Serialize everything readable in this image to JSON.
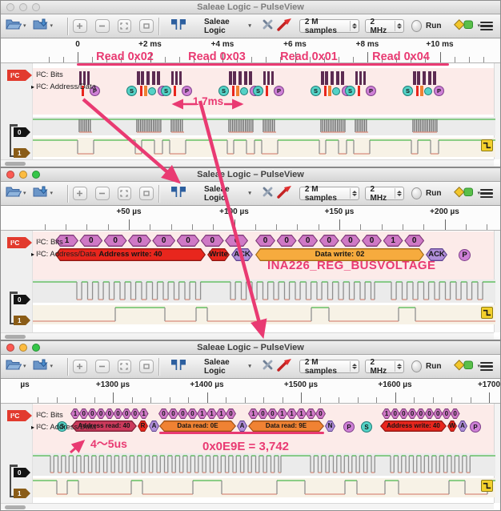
{
  "title": "Saleae Logic – PulseView",
  "toolbar": {
    "device": "Saleae Logic",
    "samples": "2 M samples",
    "rate": "2 MHz",
    "run": "Run"
  },
  "decoder": {
    "tag": "I²C",
    "bits_label": "I²C: Bits",
    "addr_label": "I²C: Address/Data",
    "ch0": "0",
    "ch1": "1"
  },
  "w1": {
    "ruler": [
      "0",
      "+2 ms",
      "+4 ms",
      "+6 ms",
      "+8 ms",
      "+10 ms"
    ],
    "reads": [
      "Read 0x02",
      "Read 0x03",
      "Read 0x01",
      "Read 0x04"
    ],
    "interval": "1.7ms"
  },
  "w2": {
    "ruler": [
      "+50 µs",
      "+100 µs",
      "+150 µs",
      "+200 µs"
    ],
    "bits": [
      [
        "1",
        "0",
        "0",
        "0",
        "0",
        "0",
        "0",
        "0"
      ],
      [
        "0",
        "0",
        "0",
        "0",
        "0",
        "0",
        "1",
        "0"
      ]
    ],
    "frames": [
      "Address write: 40",
      "Write",
      "ACK",
      "Data write: 02",
      "ACK",
      "P"
    ],
    "note": "INA226_REG_BUSVOLTAGE"
  },
  "w3": {
    "ruler": [
      "µs",
      "+1300 µs",
      "+1400 µs",
      "+1500 µs",
      "+1600 µs",
      "+1700"
    ],
    "bits": [
      [
        "1",
        "0",
        "0",
        "0",
        "0",
        "0",
        "0",
        "0",
        "1"
      ],
      [
        "0",
        "0",
        "0",
        "0",
        "1",
        "1",
        "1",
        "0"
      ],
      [
        "1",
        "0",
        "0",
        "1",
        "1",
        "1",
        "1",
        "0"
      ],
      [
        "1",
        "0",
        "0",
        "0",
        "0",
        "0",
        "0",
        "0",
        "0"
      ]
    ],
    "frames": [
      "S",
      "Address read: 40",
      "R",
      "A",
      "Data read: 0E",
      "A",
      "Data read: 9E",
      "N",
      "P",
      "S",
      "Address write: 40",
      "W",
      "A",
      "P"
    ],
    "timing_note": "4〜5us",
    "value_note": "0x0E9E = 3,742"
  },
  "colors": {
    "accent": "#e93a72",
    "bit_fill": "#cf79c6",
    "bit_border": "#7e3a78",
    "red_fill": "#e8261d",
    "red_border": "#8f1712",
    "read_fill": "#cc3a5c",
    "read_border": "#7a1c33",
    "orange_fill": "#f08233",
    "orange_border": "#9c4f14",
    "gold_fill": "#f6ab3e",
    "gold_border": "#a06a14",
    "ack_fill": "#b18fd9",
    "ack_border": "#5f4490",
    "s_fill": "#54d2c6",
    "s_border": "#1d7e78",
    "p_fill": "#ce80d6",
    "p_border": "#7e3f8a",
    "high": "#4db84d",
    "low": "#d98c7c",
    "edge": "#8f8f8f"
  }
}
